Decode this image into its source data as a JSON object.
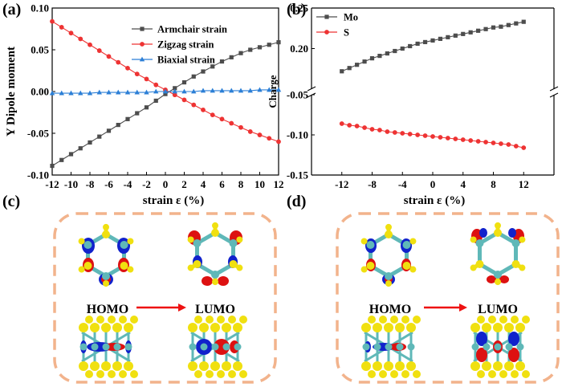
{
  "panels": {
    "a": "(a)",
    "b": "(b)",
    "c": "(c)",
    "d": "(d)"
  },
  "colors": {
    "armchair": "#4d4d4d",
    "zigzag": "#ee3333",
    "biaxial": "#2c7fd6",
    "mo": "#4d4d4d",
    "s": "#ee3333",
    "frame_dash": "#f2b38c",
    "atom_yellow": "#f0e010",
    "atom_teal": "#5fb8b8",
    "orbital_red": "#dd1111",
    "orbital_blue": "#1122cc",
    "arrow": "#ee1111"
  },
  "orbitals": {
    "c": {
      "homo": "HOMO",
      "lumo": "LUMO"
    },
    "d": {
      "homo": "HOMO",
      "lumo": "LUMO"
    }
  },
  "chart_data": [
    {
      "type": "line",
      "panel": "a",
      "xlabel": "strain ε (%)",
      "ylabel": "Y Dipole moment",
      "xlim": [
        -12,
        12
      ],
      "ylim": [
        -0.1,
        0.1
      ],
      "xticks": [
        "-12",
        "-10",
        "-8",
        "-6",
        "-4",
        "-2",
        "0",
        "2",
        "4",
        "6",
        "8",
        "10",
        "12"
      ],
      "yticks": [
        "-0.10",
        "-0.05",
        "0.00",
        "0.05",
        "0.10"
      ],
      "legend_position": "top-right",
      "x": [
        -12,
        -11,
        -10,
        -9,
        -8,
        -7,
        -6,
        -5,
        -4,
        -3,
        -2,
        -1,
        0,
        1,
        2,
        3,
        4,
        5,
        6,
        7,
        8,
        9,
        10,
        11,
        12
      ],
      "series": [
        {
          "name": "Armchair strain",
          "marker": "square",
          "values": [
            -0.089,
            -0.082,
            -0.075,
            -0.068,
            -0.061,
            -0.054,
            -0.047,
            -0.04,
            -0.033,
            -0.026,
            -0.019,
            -0.011,
            -0.003,
            0.004,
            0.011,
            0.018,
            0.024,
            0.03,
            0.036,
            0.041,
            0.046,
            0.05,
            0.053,
            0.056,
            0.059
          ]
        },
        {
          "name": "Zigzag strain",
          "marker": "circle",
          "values": [
            0.084,
            0.077,
            0.07,
            0.063,
            0.056,
            0.049,
            0.042,
            0.035,
            0.028,
            0.021,
            0.015,
            0.008,
            0.002,
            -0.004,
            -0.01,
            -0.016,
            -0.022,
            -0.028,
            -0.033,
            -0.038,
            -0.043,
            -0.048,
            -0.052,
            -0.056,
            -0.06
          ]
        },
        {
          "name": "Biaxial strain",
          "marker": "triangle",
          "values": [
            -0.002,
            -0.002,
            -0.002,
            -0.002,
            -0.002,
            -0.001,
            -0.001,
            -0.001,
            -0.001,
            -0.001,
            -0.001,
            0.0,
            0.0,
            0.0,
            0.0,
            0.0,
            0.001,
            0.001,
            0.001,
            0.001,
            0.001,
            0.001,
            0.002,
            0.002,
            0.002
          ]
        }
      ]
    },
    {
      "type": "line",
      "panel": "b",
      "xlabel": "strain ε (%)",
      "ylabel": "Charge",
      "xlim": [
        -16,
        16
      ],
      "upper_ylim": [
        0.15,
        0.25
      ],
      "lower_ylim": [
        -0.15,
        -0.05
      ],
      "axis_break": true,
      "xticks": [
        "-12",
        "-8",
        "-4",
        "0",
        "4",
        "8",
        "12"
      ],
      "yticks_upper": [
        "0.20",
        "0.25"
      ],
      "yticks_lower": [
        "-0.15",
        "-0.10",
        "-0.05"
      ],
      "legend_position": "top-left",
      "x": [
        -12,
        -11,
        -10,
        -9,
        -8,
        -7,
        -6,
        -5,
        -4,
        -3,
        -2,
        -1,
        0,
        1,
        2,
        3,
        4,
        5,
        6,
        7,
        8,
        9,
        10,
        11,
        12
      ],
      "series": [
        {
          "name": "Mo",
          "marker": "square",
          "values": [
            0.172,
            0.176,
            0.18,
            0.184,
            0.188,
            0.191,
            0.194,
            0.197,
            0.2,
            0.203,
            0.206,
            0.208,
            0.21,
            0.212,
            0.214,
            0.216,
            0.218,
            0.22,
            0.222,
            0.224,
            0.226,
            0.227,
            0.229,
            0.231,
            0.233
          ]
        },
        {
          "name": "S",
          "marker": "circle",
          "values": [
            -0.086,
            -0.088,
            -0.089,
            -0.091,
            -0.093,
            -0.094,
            -0.096,
            -0.097,
            -0.098,
            -0.099,
            -0.1,
            -0.101,
            -0.102,
            -0.103,
            -0.104,
            -0.105,
            -0.106,
            -0.107,
            -0.108,
            -0.109,
            -0.11,
            -0.111,
            -0.112,
            -0.114,
            -0.116
          ]
        }
      ]
    }
  ]
}
